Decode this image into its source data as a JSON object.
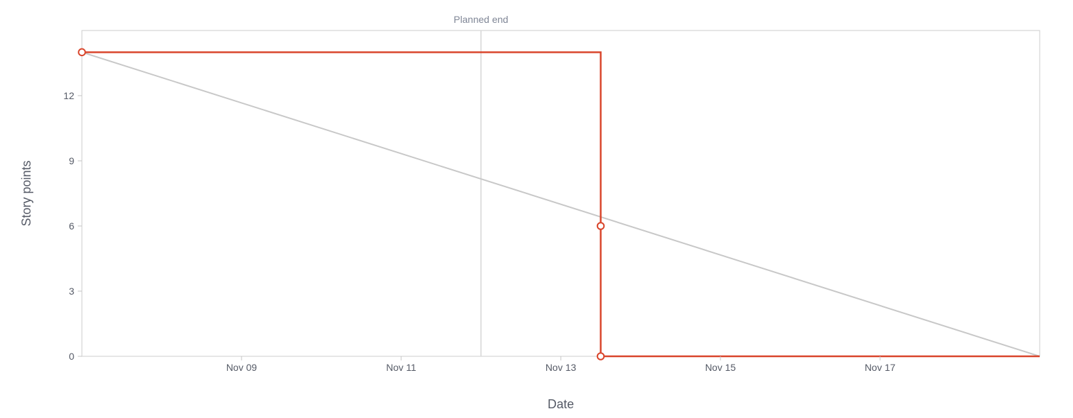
{
  "chart_data": {
    "type": "line",
    "title": "",
    "xlabel": "Date",
    "ylabel": "Story points",
    "x_axis": {
      "type": "date",
      "range": [
        "2023-11-07",
        "2023-11-19"
      ],
      "ticks": [
        {
          "date": "2023-11-09",
          "label": "Nov 09"
        },
        {
          "date": "2023-11-11",
          "label": "Nov 11"
        },
        {
          "date": "2023-11-13",
          "label": "Nov 13"
        },
        {
          "date": "2023-11-15",
          "label": "Nov 15"
        },
        {
          "date": "2023-11-17",
          "label": "Nov 17"
        }
      ]
    },
    "y_axis": {
      "range": [
        0,
        15
      ],
      "ticks": [
        0,
        3,
        6,
        9,
        12
      ]
    },
    "grid": false,
    "annotations": [
      {
        "type": "vertical-line",
        "date": "2023-11-12",
        "label": "Planned end",
        "color": "#d6d6d6"
      }
    ],
    "series": [
      {
        "name": "",
        "kind": "guideline",
        "color": "#c8c8c8",
        "points": [
          {
            "x": "2023-11-07",
            "y": 14
          },
          {
            "x": "2023-11-19",
            "y": 0
          }
        ]
      },
      {
        "name": "",
        "kind": "step",
        "color": "#d9452b",
        "points": [
          {
            "x": "2023-11-07",
            "y": 14,
            "marker": true
          },
          {
            "x": "2023-11-13.5",
            "y": 14,
            "marker": false
          },
          {
            "x": "2023-11-13.5",
            "y": 6,
            "marker": true
          },
          {
            "x": "2023-11-13.5",
            "y": 0,
            "marker": true
          },
          {
            "x": "2023-11-19",
            "y": 0,
            "marker": false
          }
        ]
      }
    ]
  }
}
